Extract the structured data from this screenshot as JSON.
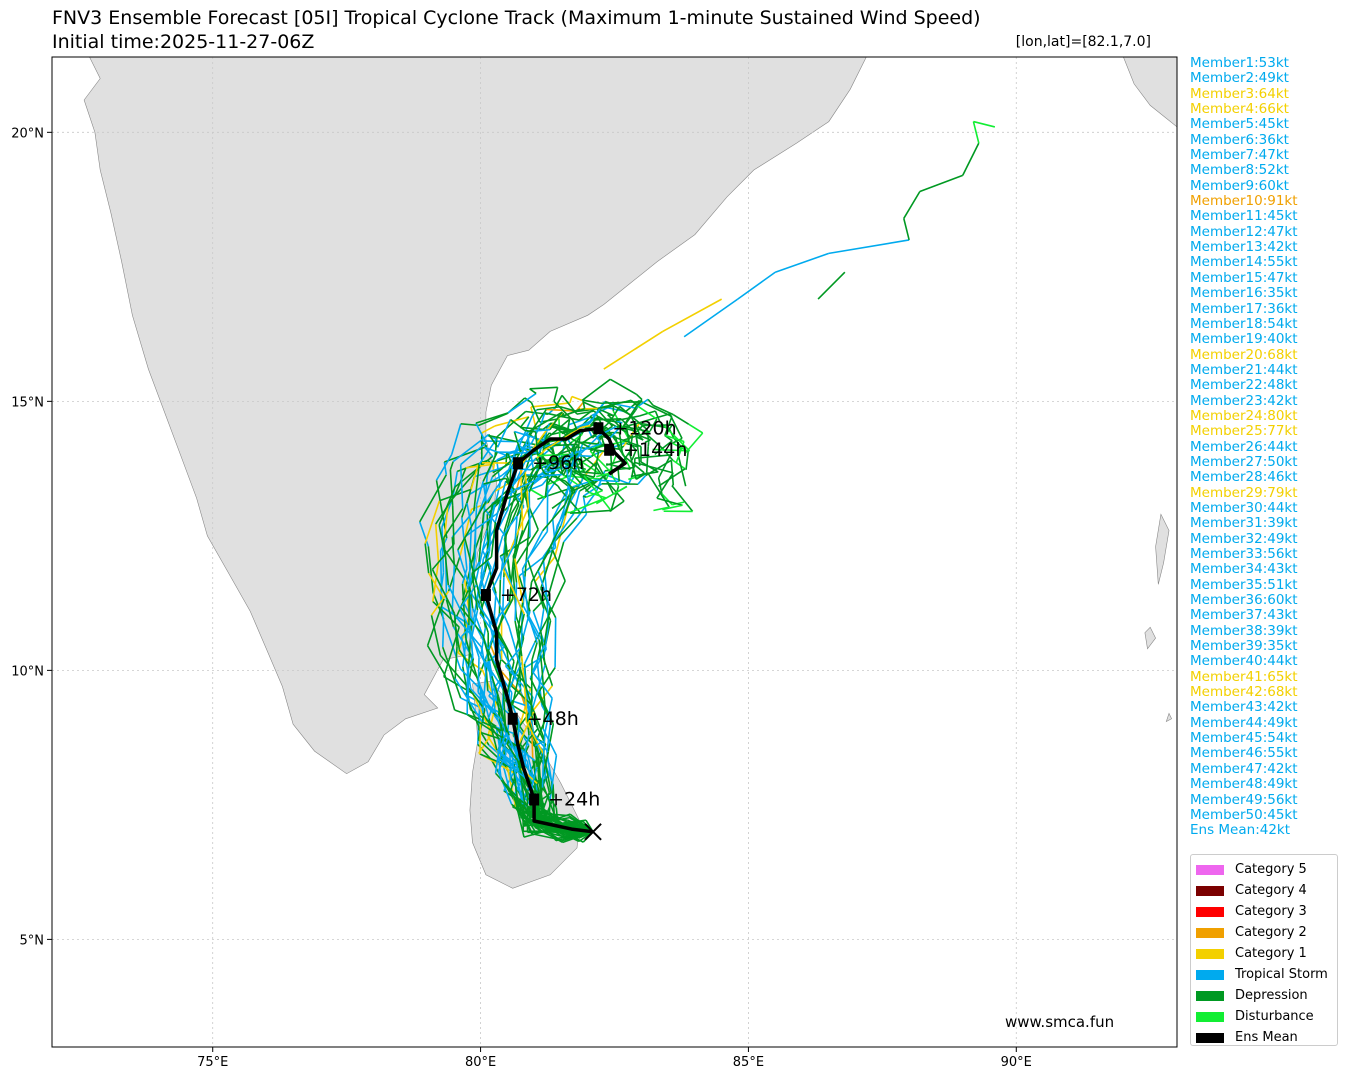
{
  "header": {
    "title": "FNV3 Ensemble Forecast [05I] Tropical Cyclone Track (Maximum 1-minute Sustained Wind Speed)",
    "subtitle": "Initial time:2025-11-27-06Z",
    "position": "[lon,lat]=[82.1,7.0]"
  },
  "map": {
    "lon_range": [
      72,
      93
    ],
    "lat_range": [
      3,
      21.4
    ],
    "x_ticks": [
      "75°E",
      "80°E",
      "85°E",
      "90°E"
    ],
    "y_ticks": [
      "5°N",
      "10°N",
      "15°N",
      "20°N"
    ],
    "land_color": "#e0e0e0",
    "grid": true
  },
  "colors": {
    "disturbance": "#11ee33",
    "depression": "#009922",
    "tropical_storm": "#00aaee",
    "category1": "#f3d000",
    "category2": "#f0a000",
    "category3": "#ff0000",
    "category4": "#7b0000",
    "category5": "#ee66ee",
    "mean": "#000000"
  },
  "ens_mean": {
    "start": [
      82.1,
      7.0
    ],
    "track": [
      [
        82.1,
        7.0
      ],
      [
        81.7,
        7.05
      ],
      [
        81.0,
        7.2
      ],
      [
        81.0,
        7.6
      ],
      [
        80.8,
        8.2
      ],
      [
        80.7,
        8.6
      ],
      [
        80.6,
        9.1
      ],
      [
        80.5,
        9.5
      ],
      [
        80.3,
        10.2
      ],
      [
        80.3,
        10.7
      ],
      [
        80.1,
        11.4
      ],
      [
        80.3,
        11.9
      ],
      [
        80.3,
        12.6
      ],
      [
        80.5,
        13.3
      ],
      [
        80.7,
        13.85
      ],
      [
        81.0,
        14.1
      ],
      [
        81.3,
        14.3
      ],
      [
        81.6,
        14.3
      ],
      [
        81.85,
        14.45
      ],
      [
        82.2,
        14.5
      ],
      [
        82.4,
        14.3
      ],
      [
        82.5,
        14.05
      ],
      [
        82.7,
        13.85
      ],
      [
        82.4,
        13.65
      ]
    ],
    "labels": [
      {
        "text": "+24h",
        "lon": 81.0,
        "lat": 7.6
      },
      {
        "text": "+48h",
        "lon": 80.6,
        "lat": 9.1
      },
      {
        "text": "+72h",
        "lon": 80.1,
        "lat": 11.4
      },
      {
        "text": "+96h",
        "lon": 80.7,
        "lat": 13.85
      },
      {
        "text": "+120h",
        "lon": 82.2,
        "lat": 14.5
      },
      {
        "text": "+144h",
        "lon": 82.4,
        "lat": 14.1
      }
    ]
  },
  "members": [
    {
      "label": "Member1:53kt",
      "cat": "tropical_storm"
    },
    {
      "label": "Member2:49kt",
      "cat": "tropical_storm"
    },
    {
      "label": "Member3:64kt",
      "cat": "category1"
    },
    {
      "label": "Member4:66kt",
      "cat": "category1"
    },
    {
      "label": "Member5:45kt",
      "cat": "tropical_storm"
    },
    {
      "label": "Member6:36kt",
      "cat": "tropical_storm"
    },
    {
      "label": "Member7:47kt",
      "cat": "tropical_storm"
    },
    {
      "label": "Member8:52kt",
      "cat": "tropical_storm"
    },
    {
      "label": "Member9:60kt",
      "cat": "tropical_storm"
    },
    {
      "label": "Member10:91kt",
      "cat": "category2"
    },
    {
      "label": "Member11:45kt",
      "cat": "tropical_storm"
    },
    {
      "label": "Member12:47kt",
      "cat": "tropical_storm"
    },
    {
      "label": "Member13:42kt",
      "cat": "tropical_storm"
    },
    {
      "label": "Member14:55kt",
      "cat": "tropical_storm"
    },
    {
      "label": "Member15:47kt",
      "cat": "tropical_storm"
    },
    {
      "label": "Member16:35kt",
      "cat": "tropical_storm"
    },
    {
      "label": "Member17:36kt",
      "cat": "tropical_storm"
    },
    {
      "label": "Member18:54kt",
      "cat": "tropical_storm"
    },
    {
      "label": "Member19:40kt",
      "cat": "tropical_storm"
    },
    {
      "label": "Member20:68kt",
      "cat": "category1"
    },
    {
      "label": "Member21:44kt",
      "cat": "tropical_storm"
    },
    {
      "label": "Member22:48kt",
      "cat": "tropical_storm"
    },
    {
      "label": "Member23:42kt",
      "cat": "tropical_storm"
    },
    {
      "label": "Member24:80kt",
      "cat": "category1"
    },
    {
      "label": "Member25:77kt",
      "cat": "category1"
    },
    {
      "label": "Member26:44kt",
      "cat": "tropical_storm"
    },
    {
      "label": "Member27:50kt",
      "cat": "tropical_storm"
    },
    {
      "label": "Member28:46kt",
      "cat": "tropical_storm"
    },
    {
      "label": "Member29:79kt",
      "cat": "category1"
    },
    {
      "label": "Member30:44kt",
      "cat": "tropical_storm"
    },
    {
      "label": "Member31:39kt",
      "cat": "tropical_storm"
    },
    {
      "label": "Member32:49kt",
      "cat": "tropical_storm"
    },
    {
      "label": "Member33:56kt",
      "cat": "tropical_storm"
    },
    {
      "label": "Member34:43kt",
      "cat": "tropical_storm"
    },
    {
      "label": "Member35:51kt",
      "cat": "tropical_storm"
    },
    {
      "label": "Member36:60kt",
      "cat": "tropical_storm"
    },
    {
      "label": "Member37:43kt",
      "cat": "tropical_storm"
    },
    {
      "label": "Member38:39kt",
      "cat": "tropical_storm"
    },
    {
      "label": "Member39:35kt",
      "cat": "tropical_storm"
    },
    {
      "label": "Member40:44kt",
      "cat": "tropical_storm"
    },
    {
      "label": "Member41:65kt",
      "cat": "category1"
    },
    {
      "label": "Member42:68kt",
      "cat": "category1"
    },
    {
      "label": "Member43:42kt",
      "cat": "tropical_storm"
    },
    {
      "label": "Member44:49kt",
      "cat": "tropical_storm"
    },
    {
      "label": "Member45:54kt",
      "cat": "tropical_storm"
    },
    {
      "label": "Member46:55kt",
      "cat": "tropical_storm"
    },
    {
      "label": "Member47:42kt",
      "cat": "tropical_storm"
    },
    {
      "label": "Member48:49kt",
      "cat": "tropical_storm"
    },
    {
      "label": "Member49:56kt",
      "cat": "tropical_storm"
    },
    {
      "label": "Member50:45kt",
      "cat": "tropical_storm"
    },
    {
      "label": "Ens Mean:42kt",
      "cat": "tropical_storm"
    }
  ],
  "legend": [
    {
      "label": "Category 5",
      "color": "#ee66ee"
    },
    {
      "label": "Category 4",
      "color": "#7b0000"
    },
    {
      "label": "Category 3",
      "color": "#ff0000"
    },
    {
      "label": "Category 2",
      "color": "#f0a000"
    },
    {
      "label": "Category 1",
      "color": "#f3d000"
    },
    {
      "label": "Tropical Storm",
      "color": "#00aaee"
    },
    {
      "label": "Depression",
      "color": "#009922"
    },
    {
      "label": "Disturbance",
      "color": "#11ee33"
    },
    {
      "label": "Ens Mean",
      "color": "#000000"
    }
  ],
  "credit": "www.smca.fun"
}
